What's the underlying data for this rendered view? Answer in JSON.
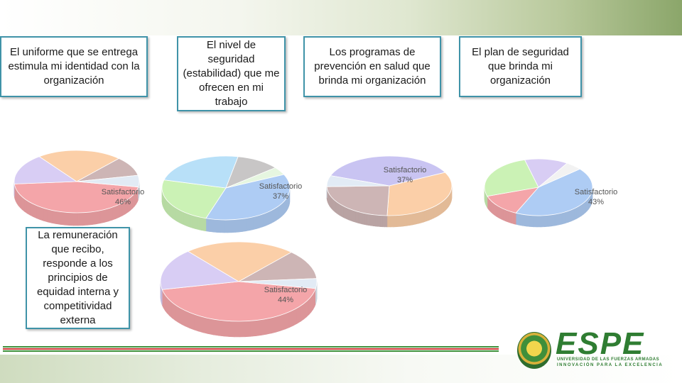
{
  "questions": [
    {
      "text": "El uniforme que se entrega estimula mi identidad con la organización"
    },
    {
      "text": "El nivel de seguridad (estabilidad) que me ofrecen en mi trabajo"
    },
    {
      "text": "Los programas de prevención en salud que brinda mi organización"
    },
    {
      "text": "El plan de seguridad que brinda mi organización"
    },
    {
      "text": "La remuneración que recibo, responde a los principios de equidad interna y competitividad externa"
    }
  ],
  "chart_data": [
    {
      "type": "pie",
      "title": "",
      "slices": [
        {
          "label": "Satisfactorio",
          "value": 46,
          "value_label": "46%",
          "color": "#f4a5a9"
        },
        {
          "label": "",
          "value": 16,
          "color": "#d8cdf4"
        },
        {
          "label": "",
          "value": 22,
          "color": "#fbcfa8"
        },
        {
          "label": "",
          "value": 10,
          "color": "#cdb5b5"
        },
        {
          "label": "",
          "value": 6,
          "color": "#e2ebf5"
        }
      ]
    },
    {
      "type": "pie",
      "title": "",
      "slices": [
        {
          "label": "Satisfactorio",
          "value": 37,
          "value_label": "37%",
          "color": "#aeccf4"
        },
        {
          "label": "",
          "value": 24,
          "color": "#cbf2b5"
        },
        {
          "label": "",
          "value": 24,
          "color": "#b8e0f8"
        },
        {
          "label": "",
          "value": 11,
          "color": "#c8c6c6"
        },
        {
          "label": "",
          "value": 4,
          "color": "#e6f6e0"
        }
      ]
    },
    {
      "type": "pie",
      "title": "",
      "slices": [
        {
          "label": "Satisfactorio",
          "value": 37,
          "value_label": "37%",
          "color": "#c9c4f2"
        },
        {
          "label": "",
          "value": 33,
          "color": "#fbcfa8"
        },
        {
          "label": "",
          "value": 24,
          "color": "#cdb5b5"
        },
        {
          "label": "",
          "value": 6,
          "color": "#e2ebf5"
        }
      ]
    },
    {
      "type": "pie",
      "title": "",
      "slices": [
        {
          "label": "Satisfactorio",
          "value": 43,
          "value_label": "43%",
          "color": "#aeccf4"
        },
        {
          "label": "",
          "value": 13,
          "color": "#f4a5a9"
        },
        {
          "label": "",
          "value": 26,
          "color": "#cbf2b5"
        },
        {
          "label": "",
          "value": 13,
          "color": "#d8cdf4"
        },
        {
          "label": "",
          "value": 5,
          "color": "#f2f2f2"
        }
      ]
    },
    {
      "type": "pie",
      "title": "",
      "slices": [
        {
          "label": "Satisfactorio",
          "value": 44,
          "value_label": "44%",
          "color": "#f4a5a9"
        },
        {
          "label": "",
          "value": 17,
          "color": "#d8cdf4"
        },
        {
          "label": "",
          "value": 23,
          "color": "#fbcfa8"
        },
        {
          "label": "",
          "value": 12,
          "color": "#cdb5b5"
        },
        {
          "label": "",
          "value": 4,
          "color": "#e2ebf5"
        }
      ]
    }
  ],
  "logo": {
    "name": "ESPE",
    "subtitle": "UNIVERSIDAD DE LAS FUERZAS ARMADAS",
    "tagline": "INNOVACIÓN PARA LA EXCELENCIA",
    "brand_color": "#2f7d32"
  },
  "decor": {
    "stripe_green": "#3f8f3a",
    "stripe_red": "#c8332e",
    "box_border": "#3f93a8"
  }
}
